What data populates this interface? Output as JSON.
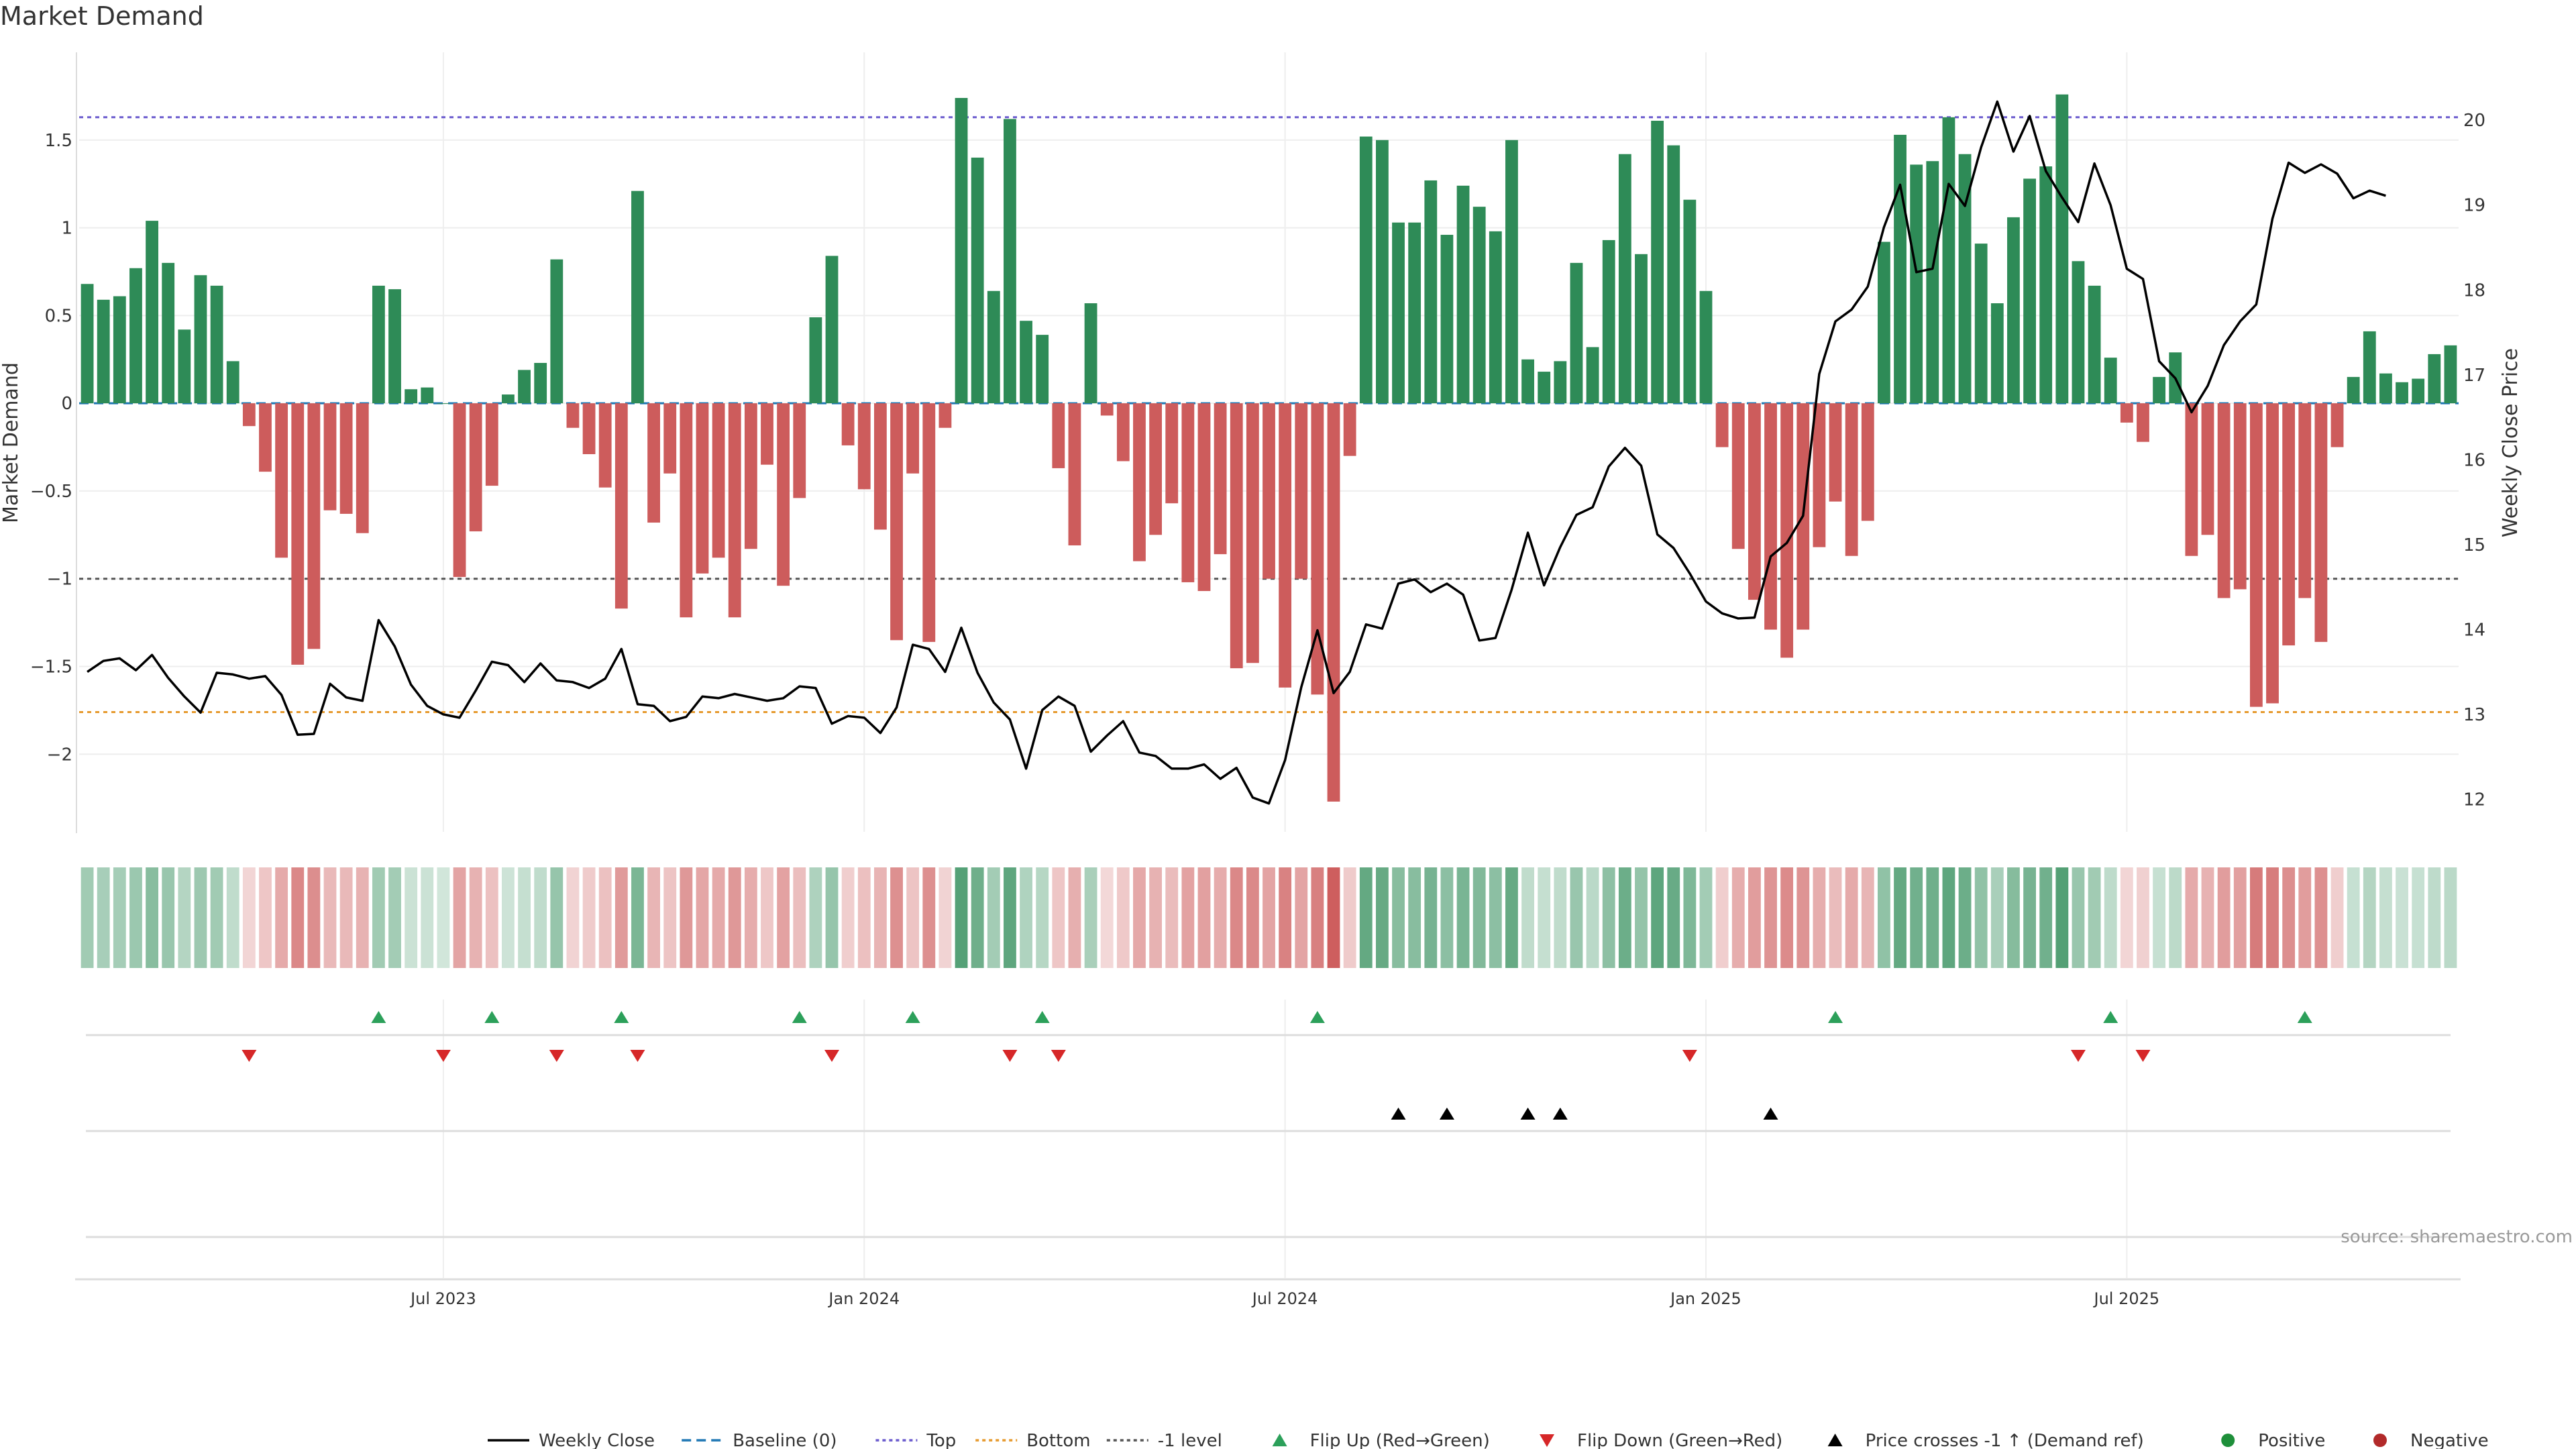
{
  "title": "Market Demand",
  "source": "source: sharemaestro.com",
  "colors": {
    "positive": "#2e8b57",
    "negative": "#cd5c5c",
    "price": "#000000",
    "top_line": "#6a5acd",
    "bottom_line": "#e69a2e",
    "minus1_line": "#555555",
    "baseline": "#1f77b4",
    "flip_up": "#2ca05a",
    "flip_down": "#d62728",
    "cross_marker": "#000000",
    "grid": "#eeeeee"
  },
  "chart_data": {
    "type": "bar",
    "title": "Market Demand",
    "ylabel": "Market Demand",
    "ylabel_right": "Weekly Close Price",
    "ylim": [
      -2.45,
      2.0
    ],
    "ylim_right": [
      11.6,
      20.8
    ],
    "yticks": [
      1.5,
      1,
      0.5,
      0,
      -0.5,
      -1,
      -1.5,
      -2
    ],
    "ytick_labels": [
      "1.5",
      "1",
      "0.5",
      "0",
      "−0.5",
      "−1",
      "−1.5",
      "−2"
    ],
    "yticks_right": [
      20,
      19,
      18,
      17,
      16,
      15,
      14,
      13,
      12
    ],
    "x_start_week": 0,
    "xticks": [
      22.5,
      48.5,
      74.5,
      100.5,
      126.5
    ],
    "xtick_labels": [
      "Jul 2023",
      "Jan 2024",
      "Jul 2024",
      "Jan 2025",
      "Jul 2025"
    ],
    "reference_lines": {
      "top": 1.63,
      "bottom": -1.76,
      "minus1": -1.0,
      "baseline": 0
    },
    "demand": [
      0.68,
      0.59,
      0.61,
      0.77,
      1.04,
      0.8,
      0.42,
      0.73,
      0.67,
      0.24,
      -0.13,
      -0.39,
      -0.88,
      -1.49,
      -1.4,
      -0.61,
      -0.63,
      -0.74,
      0.67,
      0.65,
      0.08,
      0.09,
      0.0,
      -0.99,
      -0.73,
      -0.47,
      0.05,
      0.19,
      0.23,
      0.82,
      -0.14,
      -0.29,
      -0.48,
      -1.17,
      1.21,
      -0.68,
      -0.4,
      -1.22,
      -0.97,
      -0.88,
      -1.22,
      -0.83,
      -0.35,
      -1.04,
      -0.54,
      0.49,
      0.84,
      -0.24,
      -0.49,
      -0.72,
      -1.35,
      -0.4,
      -1.36,
      -0.14,
      1.74,
      1.4,
      0.64,
      1.62,
      0.47,
      0.39,
      -0.37,
      -0.81,
      0.57,
      -0.07,
      -0.33,
      -0.9,
      -0.75,
      -0.57,
      -1.02,
      -1.07,
      -0.86,
      -1.51,
      -1.48,
      -1.0,
      -1.62,
      -1.0,
      -1.66,
      -2.27,
      -0.3,
      1.52,
      1.5,
      1.03,
      1.03,
      1.27,
      0.96,
      1.24,
      1.12,
      0.98,
      1.5,
      0.25,
      0.18,
      0.24,
      0.8,
      0.32,
      0.93,
      1.42,
      0.85,
      1.61,
      1.47,
      1.16,
      0.64,
      -0.25,
      -0.83,
      -1.12,
      -1.29,
      -1.45,
      -1.29,
      -0.82,
      -0.56,
      -0.87,
      -0.67,
      0.92,
      1.53,
      1.36,
      1.38,
      1.63,
      1.42,
      0.91,
      0.57,
      1.06,
      1.28,
      1.35,
      1.76,
      0.81,
      0.67,
      0.26,
      -0.11,
      -0.22,
      0.15,
      0.29,
      -0.87,
      -0.75,
      -1.11,
      -1.06,
      -1.73,
      -1.71,
      -1.38,
      -1.11,
      -1.36,
      -0.25,
      0.15,
      0.41,
      0.17,
      0.12,
      0.14,
      0.28,
      0.33
    ],
    "price": [
      13.5,
      13.63,
      13.66,
      13.52,
      13.7,
      13.43,
      13.21,
      13.02,
      13.49,
      13.47,
      13.42,
      13.45,
      13.23,
      12.76,
      12.77,
      13.36,
      13.2,
      13.16,
      14.11,
      13.8,
      13.35,
      13.1,
      13.0,
      12.96,
      13.28,
      13.62,
      13.58,
      13.38,
      13.6,
      13.4,
      13.38,
      13.31,
      13.42,
      13.77,
      13.12,
      13.1,
      12.92,
      12.97,
      13.21,
      13.19,
      13.24,
      13.2,
      13.16,
      13.19,
      13.33,
      13.31,
      12.89,
      12.98,
      12.96,
      12.78,
      13.08,
      13.82,
      13.77,
      13.5,
      14.02,
      13.49,
      13.14,
      12.94,
      12.36,
      13.05,
      13.21,
      13.1,
      12.56,
      12.75,
      12.92,
      12.55,
      12.51,
      12.36,
      12.36,
      12.41,
      12.24,
      12.37,
      12.02,
      11.95,
      12.46,
      13.32,
      13.99,
      13.25,
      13.5,
      14.06,
      14.01,
      14.54,
      14.59,
      14.44,
      14.54,
      14.41,
      13.87,
      13.9,
      14.47,
      15.14,
      14.52,
      14.97,
      15.35,
      15.44,
      15.92,
      16.14,
      15.93,
      15.12,
      14.96,
      14.66,
      14.33,
      14.19,
      14.13,
      14.14,
      14.86,
      15.02,
      15.34,
      17.01,
      17.63,
      17.77,
      18.04,
      18.74,
      19.24,
      18.21,
      18.25,
      19.25,
      18.99,
      19.68,
      20.22,
      19.63,
      20.05,
      19.4,
      19.09,
      18.8,
      19.49,
      19.0,
      18.25,
      18.13,
      17.16,
      16.96,
      16.56,
      16.87,
      17.35,
      17.63,
      17.83,
      18.84,
      19.5,
      19.38,
      19.48,
      19.37,
      19.08,
      19.17,
      19.11
    ],
    "flip_up": [
      18,
      25,
      33,
      44,
      51,
      59,
      76,
      108,
      125,
      137
    ],
    "flip_down": [
      10,
      22,
      29,
      34,
      46,
      57,
      60,
      99,
      123,
      127
    ],
    "price_cross": [
      81,
      84,
      89,
      91,
      104
    ],
    "legend": [
      "Weekly Close",
      "Baseline (0)",
      "Top",
      "Bottom",
      "-1 level",
      "Flip Up (Red→Green)",
      "Flip Down (Green→Red)",
      "Price crosses -1 ↑ (Demand ref)",
      "Positive",
      "Negative"
    ]
  }
}
